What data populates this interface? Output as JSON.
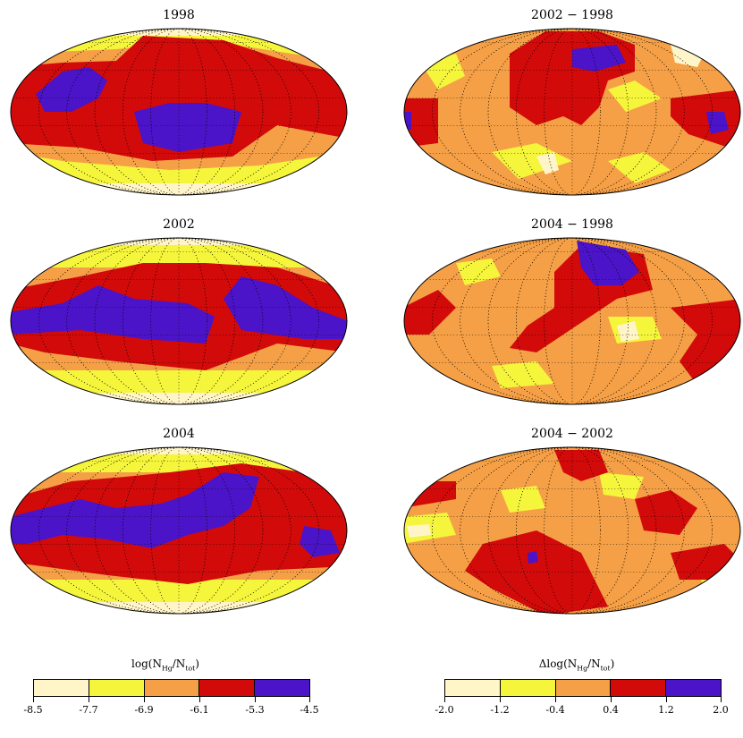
{
  "chart_data": {
    "type": "heatmap",
    "panels": [
      {
        "id": "p1998",
        "title": "1998",
        "scale": "log"
      },
      {
        "id": "p2002",
        "title": "2002",
        "scale": "log"
      },
      {
        "id": "p2004",
        "title": "2004",
        "scale": "log"
      },
      {
        "id": "d2002_1998",
        "title": "2002 − 1998",
        "scale": "delta"
      },
      {
        "id": "d2004_1998",
        "title": "2004 − 1998",
        "scale": "delta"
      },
      {
        "id": "d2004_2002",
        "title": "2004 − 2002",
        "scale": "delta"
      }
    ],
    "colorbars": {
      "log": {
        "label_prefix": "log(N",
        "label_sub1": "Hg",
        "label_mid": "/N",
        "label_sub2": "tot",
        "label_suffix": ")",
        "ticks": [
          "-8.5",
          "-7.7",
          "-6.9",
          "-6.1",
          "-5.3",
          "-4.5"
        ],
        "colors": [
          "#fff5c8",
          "#f5f53c",
          "#f5a046",
          "#d20a0a",
          "#4b14c8"
        ]
      },
      "delta": {
        "label_prefix": "Δlog(N",
        "label_sub1": "Hg",
        "label_mid": "/N",
        "label_sub2": "tot",
        "label_suffix": ")",
        "ticks": [
          "-2.0",
          "-1.2",
          "-0.4",
          "0.4",
          "1.2",
          "2.0"
        ],
        "colors": [
          "#fff5c8",
          "#f5f53c",
          "#f5a046",
          "#d20a0a",
          "#4b14c8"
        ]
      }
    },
    "colors": {
      "pale": "#fff5c8",
      "yellow": "#f5f53c",
      "orange": "#f5a046",
      "red": "#d20a0a",
      "blue": "#4b14c8"
    }
  }
}
